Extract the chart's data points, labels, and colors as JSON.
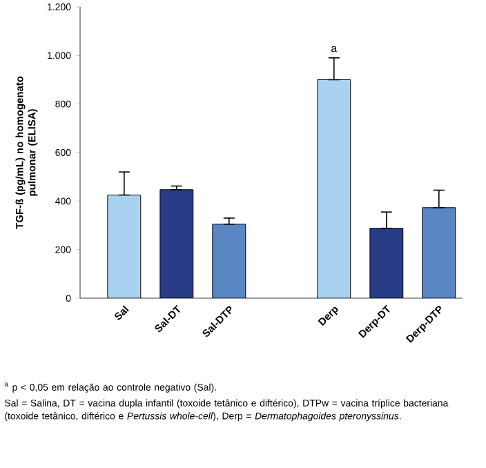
{
  "chart_data": {
    "type": "bar",
    "ylabel": "TGF-ß (pg/mL) no homogenato pulmonar (ELISA)",
    "categories": [
      "Sal",
      "Sal-DT",
      "Sal-DTP",
      null,
      "Derp",
      "Derp-DT",
      "Derp-DTP"
    ],
    "values": [
      425,
      447,
      305,
      null,
      900,
      288,
      373
    ],
    "errors": [
      [
        425,
        520
      ],
      [
        447,
        462
      ],
      [
        305,
        330
      ],
      null,
      [
        900,
        990
      ],
      [
        288,
        355
      ],
      [
        373,
        445
      ]
    ],
    "colors": [
      "#a9d2f0",
      "#283c85",
      "#5a86c4",
      "#000000",
      "#a9d2f0",
      "#283c85",
      "#5a86c4"
    ],
    "ylim": [
      0,
      1200
    ],
    "yticks": [
      0,
      200,
      400,
      600,
      800,
      {
        "value": 1000,
        "label": "1.000"
      },
      {
        "value": 1200,
        "label": "1.200"
      }
    ],
    "grid": false,
    "annotations": [
      "a",
      "$^{a}$ p < 0,05 em relação ao controle negativo (Sal).",
      "Sal = Salina, DT = vacina dupla infantil (toxoide tetânico e diftérico), DTPw = vacina tríplice bacteriana (toxoide tetânico, diftérico e *Pertussis whole-cell*), Derp = *Dermatophagoides pteronyssinus*."
    ]
  }
}
